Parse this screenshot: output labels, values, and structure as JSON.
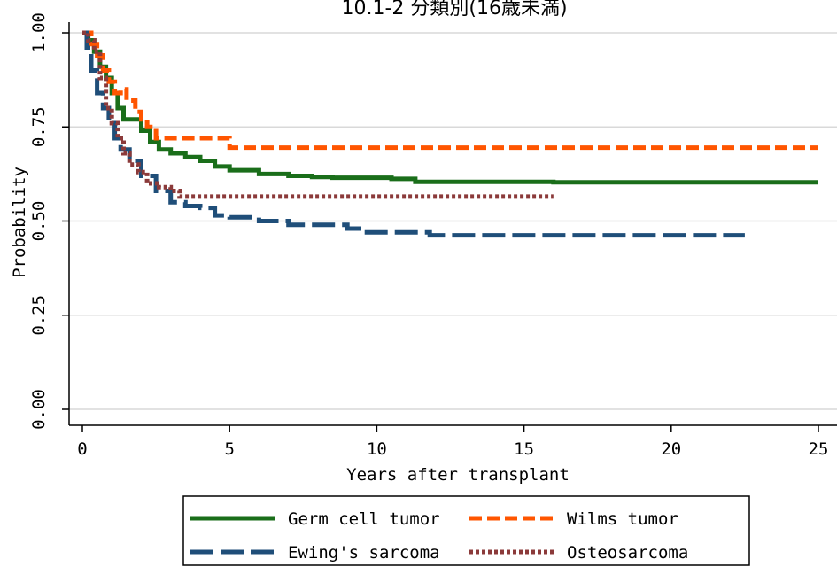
{
  "chart_data": {
    "type": "line",
    "title": "10.1-2 分類別(16歳未満)",
    "xlabel": "Years after transplant",
    "ylabel": "Probability",
    "xlim": [
      0,
      25
    ],
    "ylim": [
      0,
      1
    ],
    "x_ticks": [
      0,
      5,
      10,
      15,
      20,
      25
    ],
    "x_tick_labels": [
      "0",
      "5",
      "10",
      "15",
      "20",
      "25"
    ],
    "y_ticks": [
      0,
      0.25,
      0.5,
      0.75,
      1.0
    ],
    "y_tick_labels": [
      "0.00",
      "0.25",
      "0.50",
      "0.75",
      "1.00"
    ],
    "grid": "horizontal",
    "legend_position": "bottom",
    "series": [
      {
        "name": "Germ cell tumor",
        "color": "#1a6e1a",
        "style": "solid",
        "points": [
          [
            0,
            1.0
          ],
          [
            0.2,
            0.98
          ],
          [
            0.4,
            0.95
          ],
          [
            0.6,
            0.91
          ],
          [
            0.8,
            0.88
          ],
          [
            1.0,
            0.84
          ],
          [
            1.2,
            0.8
          ],
          [
            1.4,
            0.77
          ],
          [
            1.6,
            0.77
          ],
          [
            1.8,
            0.77
          ],
          [
            2.0,
            0.74
          ],
          [
            2.3,
            0.71
          ],
          [
            2.6,
            0.69
          ],
          [
            3.0,
            0.68
          ],
          [
            3.5,
            0.67
          ],
          [
            4.0,
            0.66
          ],
          [
            4.5,
            0.645
          ],
          [
            5.0,
            0.635
          ],
          [
            6.0,
            0.625
          ],
          [
            7.0,
            0.62
          ],
          [
            7.8,
            0.617
          ],
          [
            8.5,
            0.615
          ],
          [
            9.5,
            0.615
          ],
          [
            10.5,
            0.612
          ],
          [
            11.3,
            0.612
          ],
          [
            11.31,
            0.604
          ],
          [
            13,
            0.604
          ],
          [
            16,
            0.603
          ],
          [
            20,
            0.603
          ],
          [
            25,
            0.603
          ]
        ]
      },
      {
        "name": "Wilms tumor",
        "color": "#ff5500",
        "style": "dashed",
        "points": [
          [
            0,
            1.0
          ],
          [
            0.3,
            0.97
          ],
          [
            0.5,
            0.94
          ],
          [
            0.7,
            0.9
          ],
          [
            0.9,
            0.87
          ],
          [
            1.1,
            0.84
          ],
          [
            1.3,
            0.85
          ],
          [
            1.5,
            0.82
          ],
          [
            1.8,
            0.79
          ],
          [
            2.0,
            0.77
          ],
          [
            2.2,
            0.75
          ],
          [
            2.5,
            0.72
          ],
          [
            3.0,
            0.72
          ],
          [
            4.0,
            0.72
          ],
          [
            4.9,
            0.72
          ],
          [
            5.0,
            0.695
          ],
          [
            8,
            0.695
          ],
          [
            12,
            0.695
          ],
          [
            16,
            0.695
          ],
          [
            20,
            0.695
          ],
          [
            25,
            0.695
          ]
        ]
      },
      {
        "name": "Ewing's sarcoma",
        "color": "#1f4e79",
        "style": "longdash",
        "points": [
          [
            0,
            1.0
          ],
          [
            0.15,
            0.96
          ],
          [
            0.3,
            0.9
          ],
          [
            0.5,
            0.84
          ],
          [
            0.7,
            0.8
          ],
          [
            0.9,
            0.76
          ],
          [
            1.1,
            0.72
          ],
          [
            1.3,
            0.69
          ],
          [
            1.6,
            0.66
          ],
          [
            2.0,
            0.62
          ],
          [
            2.5,
            0.58
          ],
          [
            3.0,
            0.55
          ],
          [
            3.5,
            0.54
          ],
          [
            4.0,
            0.535
          ],
          [
            4.5,
            0.515
          ],
          [
            5.0,
            0.51
          ],
          [
            6.0,
            0.5
          ],
          [
            7.0,
            0.49
          ],
          [
            8.0,
            0.49
          ],
          [
            9.0,
            0.48
          ],
          [
            9.5,
            0.47
          ],
          [
            11.0,
            0.47
          ],
          [
            11.8,
            0.462
          ],
          [
            14,
            0.462
          ],
          [
            18,
            0.462
          ],
          [
            22.5,
            0.462
          ]
        ]
      },
      {
        "name": "Osteosarcoma",
        "color": "#8b3a3a",
        "style": "dotted",
        "points": [
          [
            0,
            1.0
          ],
          [
            0.2,
            0.98
          ],
          [
            0.4,
            0.95
          ],
          [
            0.6,
            0.88
          ],
          [
            0.8,
            0.8
          ],
          [
            1.0,
            0.76
          ],
          [
            1.2,
            0.72
          ],
          [
            1.4,
            0.68
          ],
          [
            1.6,
            0.65
          ],
          [
            1.9,
            0.63
          ],
          [
            2.2,
            0.6
          ],
          [
            2.6,
            0.59
          ],
          [
            3.0,
            0.58
          ],
          [
            3.3,
            0.565
          ],
          [
            5,
            0.565
          ],
          [
            8,
            0.565
          ],
          [
            12,
            0.565
          ],
          [
            16,
            0.565
          ]
        ]
      }
    ]
  }
}
